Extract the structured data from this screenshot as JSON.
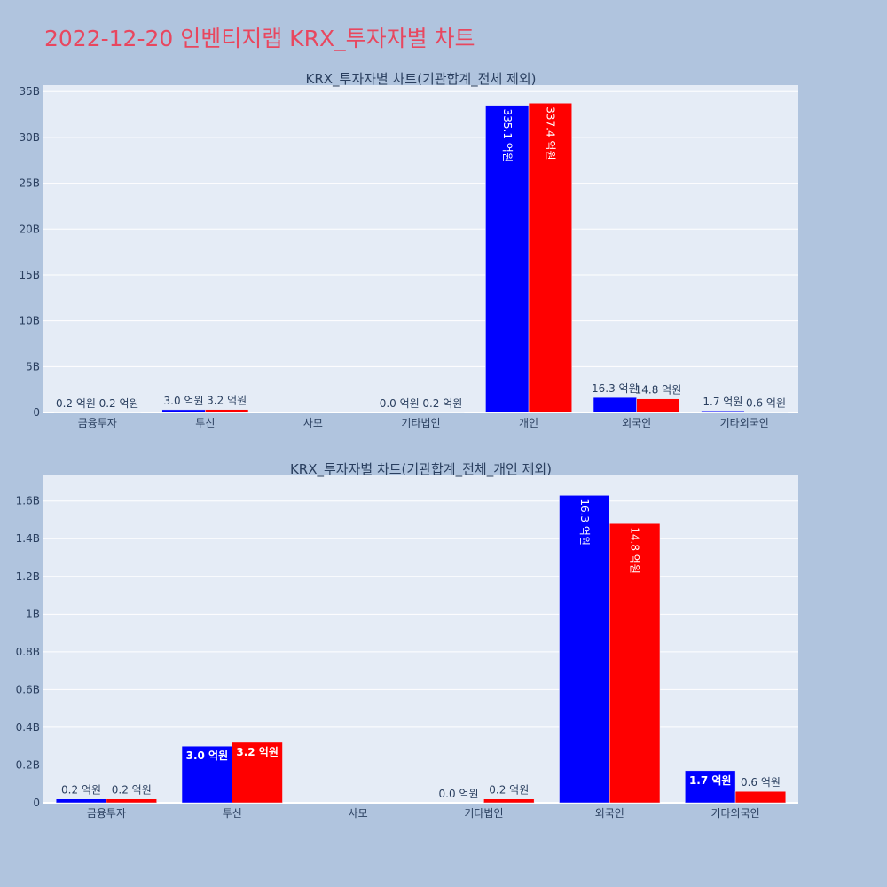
{
  "title": "2022-12-20 인벤티지랩 KRX_투자자별 차트",
  "chart_data": [
    {
      "type": "bar",
      "title": "KRX_투자자별 차트(기관합계_전체 제외)",
      "categories": [
        "금융투자",
        "투신",
        "사모",
        "기타법인",
        "개인",
        "외국인",
        "기타외국인"
      ],
      "series": [
        {
          "color": "#0000ff",
          "values": [
            20000000,
            300000000,
            null,
            0,
            33510000000,
            1630000000,
            170000000
          ],
          "labels": [
            "0.2 억원",
            "3.0 억원",
            "",
            "0.0 억원",
            "335.1 억원",
            "16.3 억원",
            "1.7 억원"
          ]
        },
        {
          "color": "#ff0000",
          "values": [
            20000000,
            320000000,
            null,
            20000000,
            33740000000,
            1480000000,
            60000000
          ],
          "labels": [
            "0.2 억원",
            "3.2 억원",
            "",
            "0.2 억원",
            "337.4 억원",
            "14.8 억원",
            "0.6 억원"
          ]
        }
      ],
      "ylim": [
        0,
        35700000000
      ],
      "yticks": [
        0,
        5000000000,
        10000000000,
        15000000000,
        20000000000,
        25000000000,
        30000000000,
        35000000000
      ],
      "yticklabels": [
        "0",
        "5B",
        "10B",
        "15B",
        "20B",
        "25B",
        "30B",
        "35B"
      ],
      "grid": true
    },
    {
      "type": "bar",
      "title": "KRX_투자자별 차트(기관합계_전체_개인 제외)",
      "categories": [
        "금융투자",
        "투신",
        "사모",
        "기타법인",
        "외국인",
        "기타외국인"
      ],
      "series": [
        {
          "color": "#0000ff",
          "values": [
            20000000,
            300000000,
            null,
            0,
            1630000000,
            170000000
          ],
          "labels": [
            "0.2 억원",
            "3.0 억원",
            "",
            "0.0 억원",
            "16.3 억원",
            "1.7 억원"
          ]
        },
        {
          "color": "#ff0000",
          "values": [
            20000000,
            320000000,
            null,
            20000000,
            1480000000,
            60000000
          ],
          "labels": [
            "0.2 억원",
            "3.2 억원",
            "",
            "0.2 억원",
            "14.8 억원",
            "0.6 억원"
          ]
        }
      ],
      "ylim": [
        0,
        1735000000
      ],
      "yticks": [
        0,
        200000000,
        400000000,
        600000000,
        800000000,
        1000000000,
        1200000000,
        1400000000,
        1600000000
      ],
      "yticklabels": [
        "0",
        "0.2B",
        "0.4B",
        "0.6B",
        "0.8B",
        "1B",
        "1.2B",
        "1.4B",
        "1.6B"
      ],
      "grid": true
    }
  ]
}
